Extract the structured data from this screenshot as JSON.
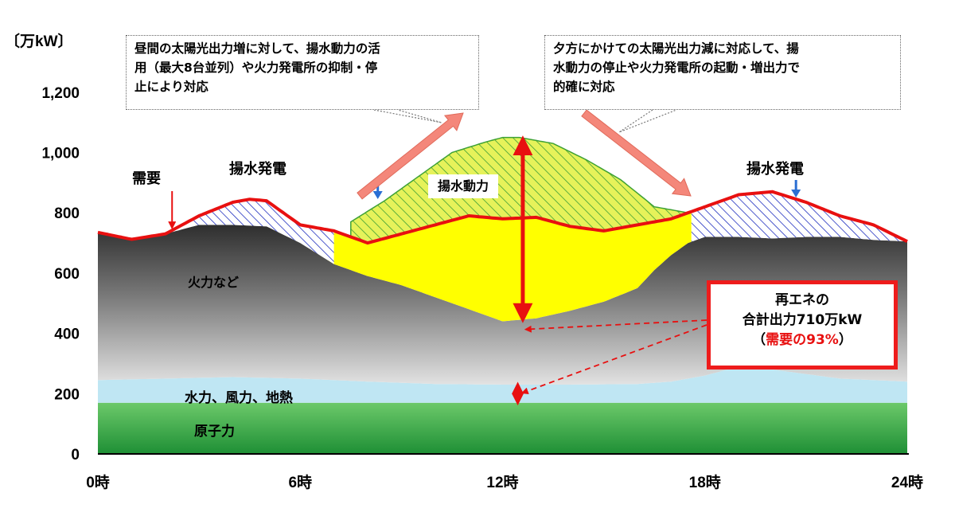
{
  "chart_data": {
    "type": "area",
    "ylabel": "〔万kW〕",
    "ylim": [
      0,
      1300
    ],
    "yticks": [
      "0",
      "200",
      "400",
      "600",
      "800",
      "1,000",
      "1,200"
    ],
    "ytick_values": [
      0,
      200,
      400,
      600,
      800,
      1000,
      1200
    ],
    "xlim": [
      0,
      24
    ],
    "xticks": [
      "0時",
      "6時",
      "12時",
      "18時",
      "24時"
    ],
    "xtick_values": [
      0,
      6,
      12,
      18,
      24
    ],
    "grid": false,
    "colors": {
      "nuclear": "#3bb54a",
      "hydro": "#bfe6f3",
      "thermal": "#6e6e6e",
      "solar": "#ffff00",
      "pump_gen": "#1f2fbf",
      "pump_power": "#3ea135",
      "demand": "#e81010",
      "arrow": "#f4877a"
    },
    "series": [
      {
        "name": "原子力",
        "x": [
          0,
          24
        ],
        "values": [
          170,
          170
        ]
      },
      {
        "name": "水力、風力、地熱",
        "x": [
          0,
          2,
          4,
          6,
          8,
          10,
          12,
          14,
          16,
          17,
          18,
          19,
          20,
          22,
          24
        ],
        "values": [
          245,
          250,
          255,
          250,
          240,
          232,
          230,
          230,
          232,
          240,
          260,
          290,
          280,
          250,
          240
        ]
      },
      {
        "name": "火力など",
        "x": [
          0,
          1,
          2,
          3,
          4,
          5,
          6,
          7,
          8,
          9,
          10,
          11,
          12,
          13,
          14,
          15,
          16,
          16.5,
          17,
          17.5,
          18,
          19,
          20,
          21,
          22,
          23,
          24
        ],
        "values": [
          735,
          710,
          730,
          760,
          760,
          755,
          700,
          630,
          590,
          560,
          520,
          480,
          440,
          450,
          475,
          505,
          550,
          610,
          660,
          700,
          720,
          720,
          715,
          720,
          720,
          710,
          705
        ]
      },
      {
        "name": "揚水動力",
        "x": [
          7.5,
          8.5,
          9.5,
          10.5,
          11.5,
          12,
          12.5,
          13.5,
          14.5,
          15.5,
          16.5,
          17.5
        ],
        "values": [
          770,
          840,
          920,
          1000,
          1035,
          1050,
          1050,
          1030,
          975,
          910,
          820,
          800
        ]
      },
      {
        "name": "需要",
        "x": [
          0,
          1,
          2,
          3,
          4,
          4.5,
          5,
          6,
          7,
          8,
          9,
          10,
          11,
          12,
          13,
          14,
          15,
          16,
          17,
          18,
          19,
          20,
          21,
          22,
          23,
          24
        ],
        "values": [
          735,
          712,
          730,
          790,
          835,
          845,
          840,
          760,
          740,
          700,
          730,
          760,
          790,
          780,
          785,
          755,
          740,
          760,
          780,
          820,
          860,
          870,
          835,
          790,
          760,
          705
        ]
      }
    ],
    "annotations": {
      "demand": "需要",
      "pump_gen_left": "揚水発電",
      "pump_gen_right": "揚水発電",
      "pump_power": "揚水動力",
      "thermal": "火力など",
      "hydro": "水力、風力、地熱",
      "nuclear": "原子力",
      "callout_left": [
        "昼間の太陽光出力増に対して、揚水動力の活",
        "用（最大8台並列）や火力発電所の抑制・停",
        "止により対応"
      ],
      "callout_right": [
        "夕方にかけての太陽光出力減に対応して、揚",
        "水動力の停止や火力発電所の起動・増出力で",
        "的確に対応"
      ],
      "renewable_box": [
        "再エネの",
        "合計出力710万kW",
        "（",
        "需要の93%",
        "）"
      ]
    }
  }
}
